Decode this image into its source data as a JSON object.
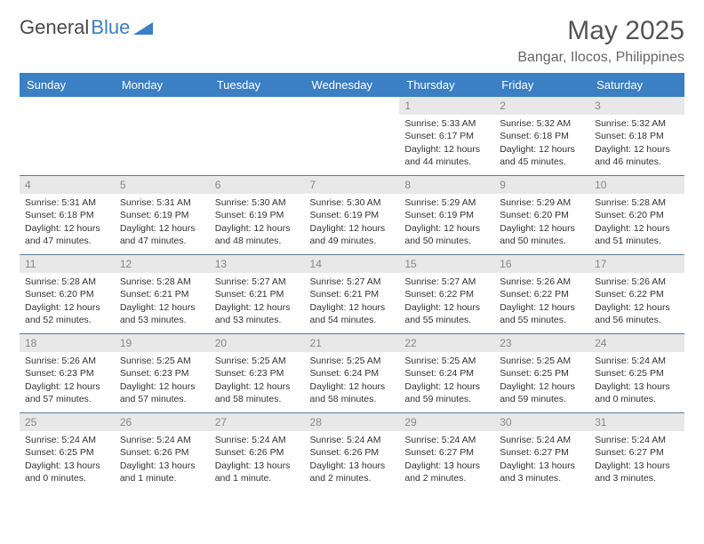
{
  "logo": {
    "text1": "General",
    "text2": "Blue"
  },
  "title": "May 2025",
  "location": "Bangar, Ilocos, Philippines",
  "colors": {
    "header_bg": "#3b7fc4",
    "header_text": "#ffffff",
    "daynum_bg": "#e8e8e8",
    "daynum_text": "#888888",
    "row_divider": "#5a7a9a",
    "body_text": "#333333",
    "title_text": "#555555"
  },
  "weekdays": [
    "Sunday",
    "Monday",
    "Tuesday",
    "Wednesday",
    "Thursday",
    "Friday",
    "Saturday"
  ],
  "weeks": [
    [
      {
        "day": ""
      },
      {
        "day": ""
      },
      {
        "day": ""
      },
      {
        "day": ""
      },
      {
        "day": "1",
        "sunrise": "Sunrise: 5:33 AM",
        "sunset": "Sunset: 6:17 PM",
        "dl1": "Daylight: 12 hours",
        "dl2": "and 44 minutes."
      },
      {
        "day": "2",
        "sunrise": "Sunrise: 5:32 AM",
        "sunset": "Sunset: 6:18 PM",
        "dl1": "Daylight: 12 hours",
        "dl2": "and 45 minutes."
      },
      {
        "day": "3",
        "sunrise": "Sunrise: 5:32 AM",
        "sunset": "Sunset: 6:18 PM",
        "dl1": "Daylight: 12 hours",
        "dl2": "and 46 minutes."
      }
    ],
    [
      {
        "day": "4",
        "sunrise": "Sunrise: 5:31 AM",
        "sunset": "Sunset: 6:18 PM",
        "dl1": "Daylight: 12 hours",
        "dl2": "and 47 minutes."
      },
      {
        "day": "5",
        "sunrise": "Sunrise: 5:31 AM",
        "sunset": "Sunset: 6:19 PM",
        "dl1": "Daylight: 12 hours",
        "dl2": "and 47 minutes."
      },
      {
        "day": "6",
        "sunrise": "Sunrise: 5:30 AM",
        "sunset": "Sunset: 6:19 PM",
        "dl1": "Daylight: 12 hours",
        "dl2": "and 48 minutes."
      },
      {
        "day": "7",
        "sunrise": "Sunrise: 5:30 AM",
        "sunset": "Sunset: 6:19 PM",
        "dl1": "Daylight: 12 hours",
        "dl2": "and 49 minutes."
      },
      {
        "day": "8",
        "sunrise": "Sunrise: 5:29 AM",
        "sunset": "Sunset: 6:19 PM",
        "dl1": "Daylight: 12 hours",
        "dl2": "and 50 minutes."
      },
      {
        "day": "9",
        "sunrise": "Sunrise: 5:29 AM",
        "sunset": "Sunset: 6:20 PM",
        "dl1": "Daylight: 12 hours",
        "dl2": "and 50 minutes."
      },
      {
        "day": "10",
        "sunrise": "Sunrise: 5:28 AM",
        "sunset": "Sunset: 6:20 PM",
        "dl1": "Daylight: 12 hours",
        "dl2": "and 51 minutes."
      }
    ],
    [
      {
        "day": "11",
        "sunrise": "Sunrise: 5:28 AM",
        "sunset": "Sunset: 6:20 PM",
        "dl1": "Daylight: 12 hours",
        "dl2": "and 52 minutes."
      },
      {
        "day": "12",
        "sunrise": "Sunrise: 5:28 AM",
        "sunset": "Sunset: 6:21 PM",
        "dl1": "Daylight: 12 hours",
        "dl2": "and 53 minutes."
      },
      {
        "day": "13",
        "sunrise": "Sunrise: 5:27 AM",
        "sunset": "Sunset: 6:21 PM",
        "dl1": "Daylight: 12 hours",
        "dl2": "and 53 minutes."
      },
      {
        "day": "14",
        "sunrise": "Sunrise: 5:27 AM",
        "sunset": "Sunset: 6:21 PM",
        "dl1": "Daylight: 12 hours",
        "dl2": "and 54 minutes."
      },
      {
        "day": "15",
        "sunrise": "Sunrise: 5:27 AM",
        "sunset": "Sunset: 6:22 PM",
        "dl1": "Daylight: 12 hours",
        "dl2": "and 55 minutes."
      },
      {
        "day": "16",
        "sunrise": "Sunrise: 5:26 AM",
        "sunset": "Sunset: 6:22 PM",
        "dl1": "Daylight: 12 hours",
        "dl2": "and 55 minutes."
      },
      {
        "day": "17",
        "sunrise": "Sunrise: 5:26 AM",
        "sunset": "Sunset: 6:22 PM",
        "dl1": "Daylight: 12 hours",
        "dl2": "and 56 minutes."
      }
    ],
    [
      {
        "day": "18",
        "sunrise": "Sunrise: 5:26 AM",
        "sunset": "Sunset: 6:23 PM",
        "dl1": "Daylight: 12 hours",
        "dl2": "and 57 minutes."
      },
      {
        "day": "19",
        "sunrise": "Sunrise: 5:25 AM",
        "sunset": "Sunset: 6:23 PM",
        "dl1": "Daylight: 12 hours",
        "dl2": "and 57 minutes."
      },
      {
        "day": "20",
        "sunrise": "Sunrise: 5:25 AM",
        "sunset": "Sunset: 6:23 PM",
        "dl1": "Daylight: 12 hours",
        "dl2": "and 58 minutes."
      },
      {
        "day": "21",
        "sunrise": "Sunrise: 5:25 AM",
        "sunset": "Sunset: 6:24 PM",
        "dl1": "Daylight: 12 hours",
        "dl2": "and 58 minutes."
      },
      {
        "day": "22",
        "sunrise": "Sunrise: 5:25 AM",
        "sunset": "Sunset: 6:24 PM",
        "dl1": "Daylight: 12 hours",
        "dl2": "and 59 minutes."
      },
      {
        "day": "23",
        "sunrise": "Sunrise: 5:25 AM",
        "sunset": "Sunset: 6:25 PM",
        "dl1": "Daylight: 12 hours",
        "dl2": "and 59 minutes."
      },
      {
        "day": "24",
        "sunrise": "Sunrise: 5:24 AM",
        "sunset": "Sunset: 6:25 PM",
        "dl1": "Daylight: 13 hours",
        "dl2": "and 0 minutes."
      }
    ],
    [
      {
        "day": "25",
        "sunrise": "Sunrise: 5:24 AM",
        "sunset": "Sunset: 6:25 PM",
        "dl1": "Daylight: 13 hours",
        "dl2": "and 0 minutes."
      },
      {
        "day": "26",
        "sunrise": "Sunrise: 5:24 AM",
        "sunset": "Sunset: 6:26 PM",
        "dl1": "Daylight: 13 hours",
        "dl2": "and 1 minute."
      },
      {
        "day": "27",
        "sunrise": "Sunrise: 5:24 AM",
        "sunset": "Sunset: 6:26 PM",
        "dl1": "Daylight: 13 hours",
        "dl2": "and 1 minute."
      },
      {
        "day": "28",
        "sunrise": "Sunrise: 5:24 AM",
        "sunset": "Sunset: 6:26 PM",
        "dl1": "Daylight: 13 hours",
        "dl2": "and 2 minutes."
      },
      {
        "day": "29",
        "sunrise": "Sunrise: 5:24 AM",
        "sunset": "Sunset: 6:27 PM",
        "dl1": "Daylight: 13 hours",
        "dl2": "and 2 minutes."
      },
      {
        "day": "30",
        "sunrise": "Sunrise: 5:24 AM",
        "sunset": "Sunset: 6:27 PM",
        "dl1": "Daylight: 13 hours",
        "dl2": "and 3 minutes."
      },
      {
        "day": "31",
        "sunrise": "Sunrise: 5:24 AM",
        "sunset": "Sunset: 6:27 PM",
        "dl1": "Daylight: 13 hours",
        "dl2": "and 3 minutes."
      }
    ]
  ]
}
